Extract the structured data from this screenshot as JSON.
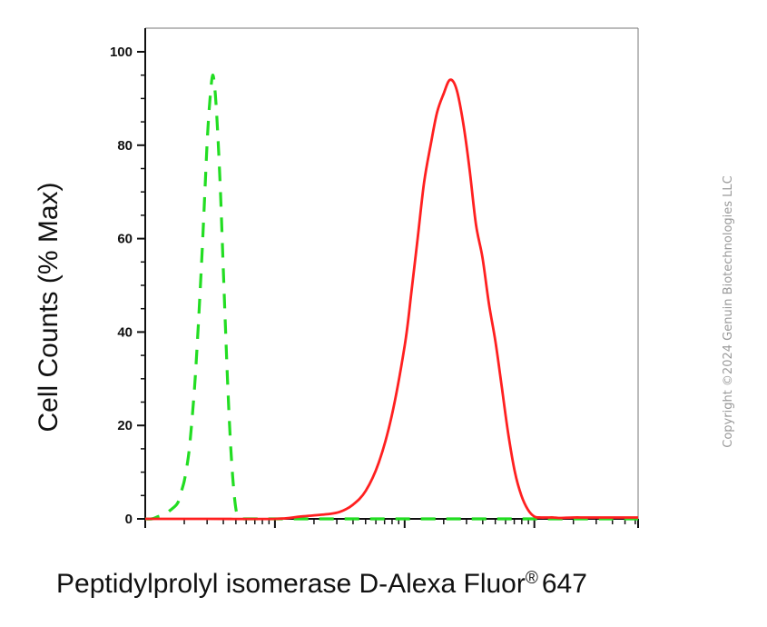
{
  "chart_data": {
    "type": "line",
    "title": "",
    "xlabel": "Peptidylprolyl isomerase D-Alexa Fluor",
    "xlabel_mark": "®",
    "xlabel_suffix": "647",
    "ylabel": "Cell Counts (% Max)",
    "x_scale": "log",
    "x_tick_labels": [],
    "ylim": [
      0,
      100
    ],
    "yticks": [
      0,
      20,
      40,
      60,
      80,
      100
    ],
    "legend": "none",
    "grid": false,
    "series": [
      {
        "style": "dashed",
        "color": "#22dd22",
        "x": [
          0.0,
          0.05,
          0.1,
          0.15,
          0.2,
          0.24,
          0.26,
          0.28,
          0.3,
          0.32,
          0.34,
          0.36,
          0.38,
          0.4,
          0.42,
          0.44,
          0.46,
          0.48,
          0.5,
          0.52,
          0.54,
          0.56,
          0.58,
          0.6,
          0.62,
          0.64,
          0.66,
          0.68,
          0.7,
          0.72,
          0.74,
          0.76,
          0.78,
          0.8,
          0.9,
          1.0,
          1.2,
          1.4,
          1.6,
          1.8,
          2.0,
          2.2,
          2.4,
          2.6,
          2.8,
          3.0,
          3.2,
          3.4,
          3.6,
          3.8
        ],
        "y": [
          0,
          0,
          0.5,
          1,
          2,
          3,
          4,
          6,
          8,
          11,
          15,
          21,
          28,
          37,
          47,
          58,
          70,
          82,
          90,
          95,
          91,
          82,
          70,
          55,
          40,
          26,
          15,
          7,
          2,
          0.5,
          0,
          0,
          0,
          0,
          0,
          0,
          0,
          0,
          0,
          0,
          0,
          0,
          0,
          0,
          0,
          0,
          0,
          0,
          0,
          0
        ]
      },
      {
        "style": "solid",
        "color": "#ff2020",
        "x": [
          0.0,
          0.5,
          1.0,
          1.2,
          1.4,
          1.5,
          1.6,
          1.7,
          1.8,
          1.9,
          2.0,
          2.05,
          2.1,
          2.15,
          2.2,
          2.25,
          2.3,
          2.35,
          2.4,
          2.45,
          2.5,
          2.55,
          2.6,
          2.65,
          2.7,
          2.75,
          2.8,
          2.85,
          2.9,
          2.95,
          3.0,
          3.05,
          3.1,
          3.15,
          3.2,
          3.3,
          3.4,
          3.6,
          3.8
        ],
        "y": [
          0,
          0,
          0,
          0.5,
          1,
          1.5,
          3,
          6,
          12,
          22,
          37,
          48,
          60,
          72,
          80,
          87,
          91,
          94,
          92,
          85,
          75,
          63,
          56,
          46,
          38,
          28,
          18,
          10,
          5,
          2,
          0.5,
          0.3,
          0.3,
          0.3,
          0.2,
          0.3,
          0.3,
          0.3,
          0.3
        ]
      }
    ]
  },
  "watermark": {
    "copyright": "Copyright ©2024 Genuin Biotechnologies LLC"
  }
}
